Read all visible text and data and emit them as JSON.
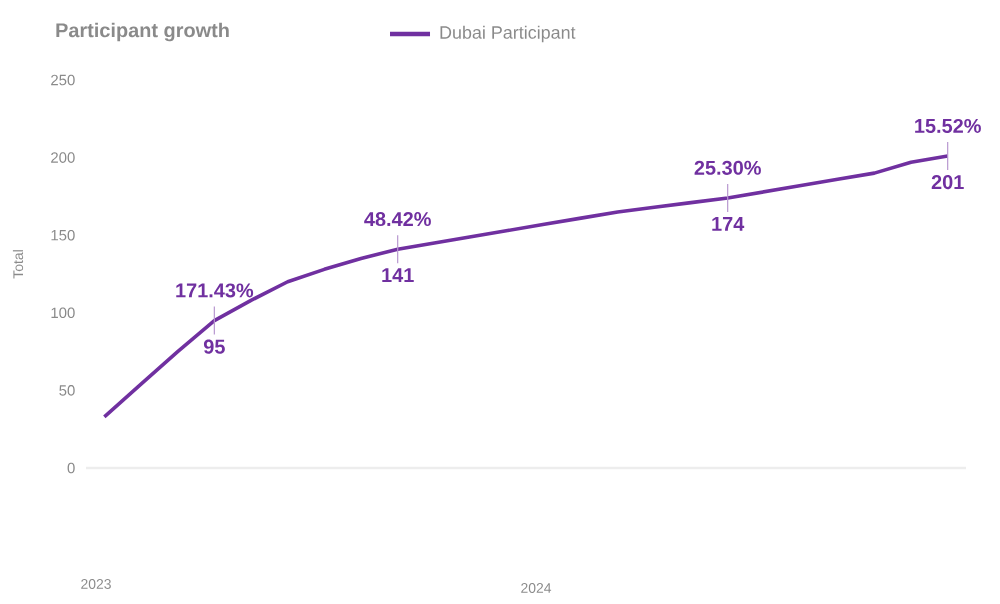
{
  "chart_data": {
    "type": "line",
    "title": "Participant growth",
    "ylabel": "Total",
    "categories": [
      null,
      null,
      null,
      null,
      null,
      null,
      null,
      null,
      null,
      null,
      null,
      null,
      null,
      null,
      null,
      null,
      null,
      null,
      null,
      null,
      null,
      null,
      null,
      null
    ],
    "series": [
      {
        "name": "Dubai Participant",
        "color": "#7030a0",
        "values": [
          33,
          54,
          75,
          95,
          108,
          120,
          128,
          135,
          141,
          145,
          149,
          153,
          157,
          161,
          165,
          168,
          171,
          174,
          178,
          182,
          186,
          190,
          197,
          201
        ],
        "value_labels": [
          null,
          null,
          null,
          "95",
          null,
          null,
          null,
          null,
          "141",
          null,
          null,
          null,
          null,
          null,
          null,
          null,
          null,
          "174",
          null,
          null,
          null,
          null,
          null,
          "201"
        ]
      }
    ],
    "annotations": [
      {
        "text": "171.43%",
        "y": 95
      },
      {
        "text": "48.42%",
        "y": 141
      },
      {
        "text": "25.30%",
        "y": 174
      },
      {
        "text": "15.52%",
        "y": 201
      },
      "2023",
      "2024"
    ],
    "ylim": [
      0,
      250
    ],
    "yticks": [
      0,
      50,
      100,
      150,
      200,
      250
    ],
    "legend": "top",
    "marker": "none",
    "line_style": "solid"
  }
}
